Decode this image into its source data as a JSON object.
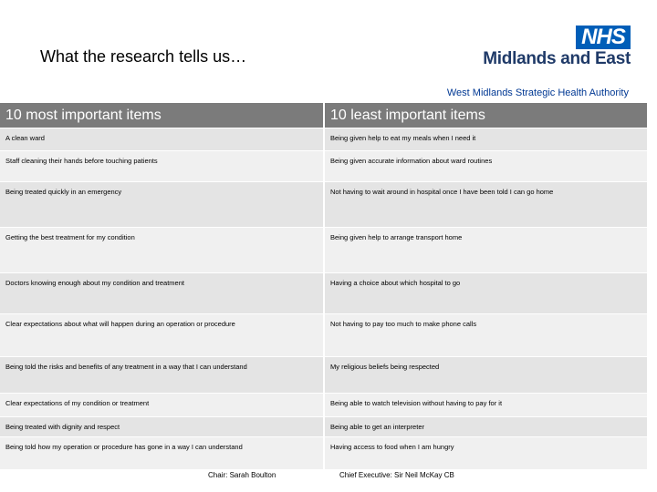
{
  "header": {
    "title": "What the research tells us…",
    "logo": {
      "mark": "NHS",
      "region": "Midlands and East"
    },
    "organisation": "West Midlands Strategic Health Authority"
  },
  "table": {
    "columns": [
      "10 most important items",
      "10 least important items"
    ],
    "rows": [
      [
        "A clean ward",
        "Being given help to eat my meals when I need it"
      ],
      [
        "Staff cleaning their hands before touching patients",
        "Being given accurate information about ward routines"
      ],
      [
        "Being treated quickly in an emergency",
        "Not having to wait around in hospital once I have been told I can go home"
      ],
      [
        "Getting the best treatment for my condition",
        "Being given help to arrange transport home"
      ],
      [
        "Doctors knowing enough about my condition and treatment",
        "Having a choice about which hospital to go"
      ],
      [
        "Clear expectations about what will happen during an operation or procedure",
        "Not having to pay too much to make phone calls"
      ],
      [
        "Being told the risks and benefits of any treatment in a way that I can understand",
        "My religious beliefs being respected"
      ],
      [
        "Clear expectations of my condition or treatment",
        "Being able to watch television without having to pay for it"
      ],
      [
        "Being treated with dignity and respect",
        "Being able to get an interpreter"
      ],
      [
        "Being told how my operation or procedure has gone in a way I can understand",
        "Having access to food when I am hungry"
      ]
    ]
  },
  "footer": {
    "chair": "Chair: Sarah Boulton",
    "chief_executive": "Chief Executive: Sir Neil McKay CB"
  }
}
